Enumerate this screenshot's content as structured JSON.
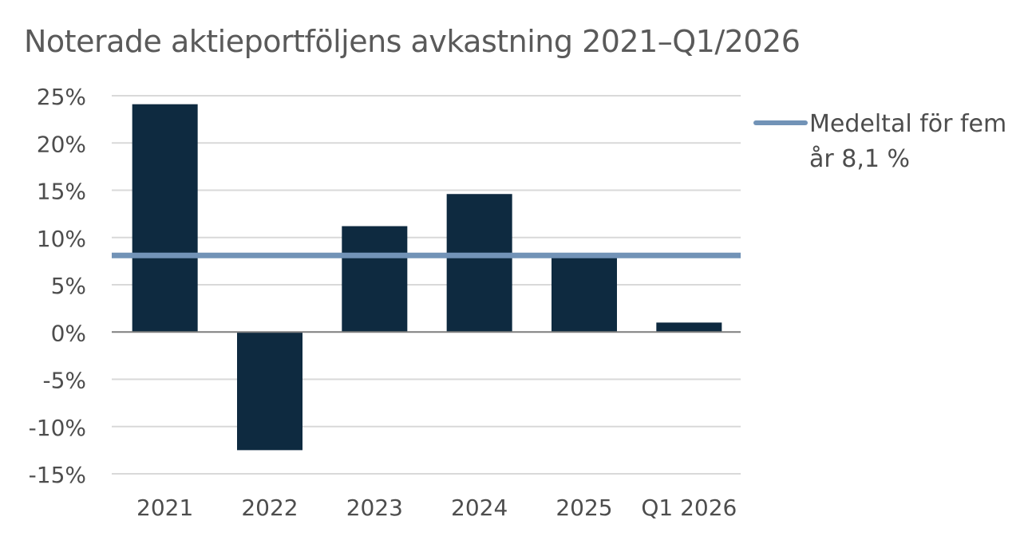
{
  "chart_data": {
    "type": "bar",
    "title": "Noterade aktieportföljens avkastning 2021–Q1/2026",
    "categories": [
      "2021",
      "2022",
      "2023",
      "2024",
      "2025",
      "Q1 2026"
    ],
    "series": [
      {
        "values": [
          24.1,
          -12.5,
          11.2,
          14.6,
          8.0,
          1.0
        ]
      }
    ],
    "reference_line": {
      "name": "Medeltal för fem år 8,1 %",
      "value": 8.1
    },
    "ylim": [
      -15,
      25
    ],
    "yticks": [
      25,
      20,
      15,
      10,
      5,
      0,
      -5,
      -10,
      -15
    ],
    "ytick_labels": [
      "25%",
      "20%",
      "15%",
      "10%",
      "5%",
      "0%",
      "-5%",
      "-10%",
      "-15%"
    ],
    "xlabel": "",
    "ylabel": "",
    "grid": true,
    "legend_position": "right",
    "colors": {
      "bar": "#0e2a40",
      "reference_line": "#7293b7",
      "grid": "#d9d9d9",
      "zero_line": "#7f7f7f",
      "text": "#4d4d4d",
      "title": "#5a5a5a"
    }
  }
}
